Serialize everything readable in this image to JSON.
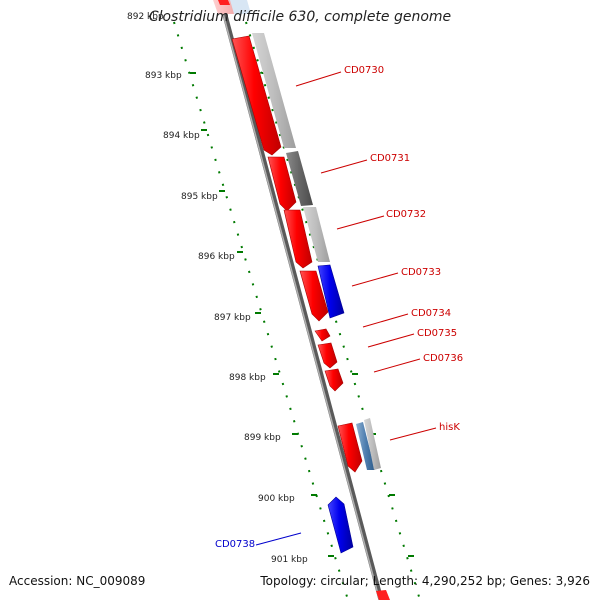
{
  "title": "Clostridium difficile 630, complete genome",
  "footer": {
    "accession": "Accession: NC_009089",
    "stats": "Topology: circular; Length: 4,290,252 bp; Genes: 3,926"
  },
  "scale_ticks": [
    "892 kbp",
    "893 kbp",
    "894 kbp",
    "895 kbp",
    "896 kbp",
    "897 kbp",
    "898 kbp",
    "899 kbp",
    "900 kbp",
    "901 kbp"
  ],
  "gene_labels": [
    {
      "id": "cd0730",
      "text": "CD0730",
      "color": "#cc0000"
    },
    {
      "id": "cd0731",
      "text": "CD0731",
      "color": "#cc0000"
    },
    {
      "id": "cd0732",
      "text": "CD0732",
      "color": "#cc0000"
    },
    {
      "id": "cd0733",
      "text": "CD0733",
      "color": "#cc0000"
    },
    {
      "id": "cd0734",
      "text": "CD0734",
      "color": "#cc0000"
    },
    {
      "id": "cd0735",
      "text": "CD0735",
      "color": "#cc0000"
    },
    {
      "id": "cd0736",
      "text": "CD0736",
      "color": "#cc0000"
    },
    {
      "id": "hisk",
      "text": "hisK",
      "color": "#cc0000"
    },
    {
      "id": "cd0738",
      "text": "CD0738",
      "color": "#0000cc"
    }
  ],
  "colors": {
    "forward_gene": "#ff0000",
    "reverse_gene": "#0000ee",
    "backbone": "#888888",
    "scale": "#007a00"
  }
}
